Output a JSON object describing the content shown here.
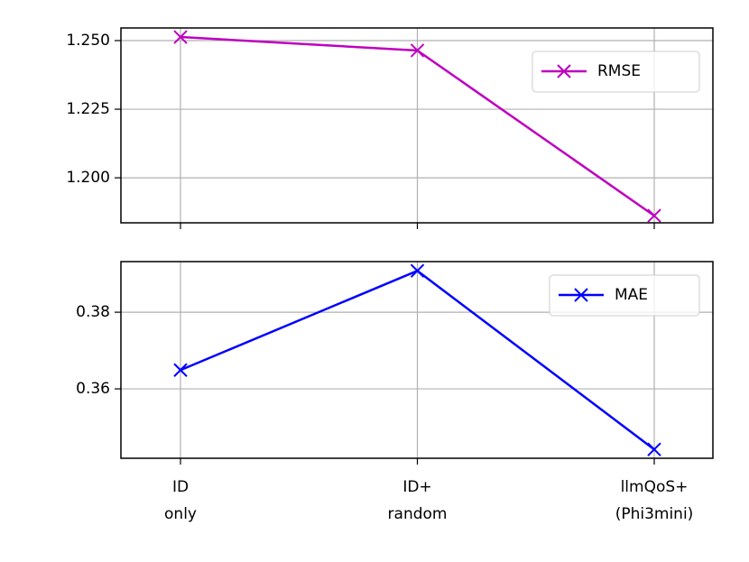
{
  "chart_data": [
    {
      "type": "line",
      "series": [
        {
          "name": "RMSE",
          "color": "#bf00bf",
          "values": [
            1.2513,
            1.2464,
            1.1862
          ]
        }
      ],
      "ylim": [
        1.1836,
        1.2546
      ],
      "yticks": [
        {
          "value": 1.2,
          "label": "1.200"
        },
        1.225,
        {
          "value": 1.25,
          "label": "1.250"
        }
      ],
      "grid": true,
      "legend": "upper right",
      "marker": "x"
    },
    {
      "type": "line",
      "categories": [
        [
          "ID",
          "only"
        ],
        [
          "ID+",
          "random"
        ],
        [
          "llmQoS+",
          "(Phi3mini)"
        ]
      ],
      "series": [
        {
          "name": "MAE",
          "color": "#0000ff",
          "values": [
            0.3649,
            0.3908,
            0.3442
          ]
        }
      ],
      "ylim": [
        0.3419,
        0.3932
      ],
      "yticks": [
        0.36,
        0.38
      ],
      "grid": true,
      "legend": "upper right",
      "marker": "x"
    }
  ]
}
